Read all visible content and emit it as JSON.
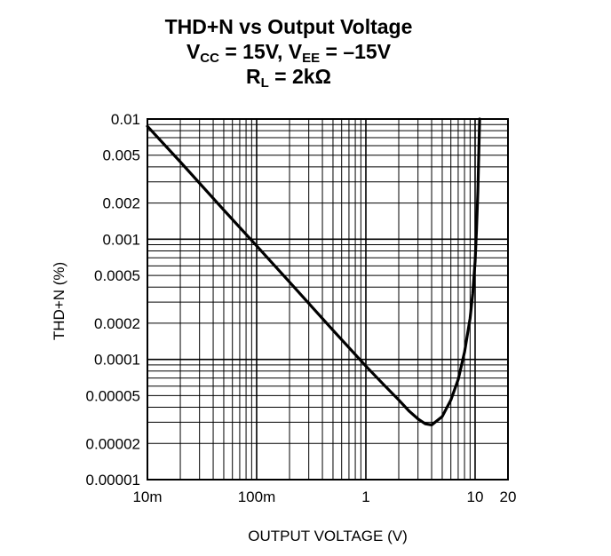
{
  "chart_data": {
    "type": "line",
    "title": {
      "line1": "THD+N vs Output Voltage",
      "line2": {
        "a": "V",
        "a_sub": "CC",
        "b": " = 15V, V",
        "b_sub": "EE",
        "c": " = –15V"
      },
      "line3": {
        "a": "R",
        "a_sub": "L",
        "b": " = 2kΩ"
      }
    },
    "xlabel": "OUTPUT VOLTAGE (V)",
    "ylabel": "THD+N (%)",
    "xscale": "log",
    "yscale": "log",
    "xlim": [
      0.01,
      20
    ],
    "ylim": [
      1e-05,
      0.01
    ],
    "grid": true,
    "x_ticks": [
      {
        "value": 0.01,
        "label": "10m"
      },
      {
        "value": 0.1,
        "label": "100m"
      },
      {
        "value": 1,
        "label": "1"
      },
      {
        "value": 10,
        "label": "10"
      },
      {
        "value": 20,
        "label": "20"
      }
    ],
    "y_ticks": [
      {
        "value": 0.01,
        "label": "0.01"
      },
      {
        "value": 0.005,
        "label": "0.005"
      },
      {
        "value": 0.002,
        "label": "0.002"
      },
      {
        "value": 0.001,
        "label": "0.001"
      },
      {
        "value": 0.0005,
        "label": "0.0005"
      },
      {
        "value": 0.0002,
        "label": "0.0002"
      },
      {
        "value": 0.0001,
        "label": "0.0001"
      },
      {
        "value": 5e-05,
        "label": "0.00005"
      },
      {
        "value": 2e-05,
        "label": "0.00002"
      },
      {
        "value": 1e-05,
        "label": "0.00001"
      }
    ],
    "series": [
      {
        "color": "#000000",
        "x": [
          0.01,
          0.02,
          0.05,
          0.1,
          0.2,
          0.5,
          1,
          1.5,
          2,
          2.5,
          3,
          3.5,
          4,
          5,
          6,
          7,
          8,
          9,
          9.5,
          10,
          10.3,
          10.6,
          10.8,
          11
        ],
        "y": [
          0.0087,
          0.0044,
          0.00175,
          0.00088,
          0.00044,
          0.000175,
          8.8e-05,
          6e-05,
          4.6e-05,
          3.7e-05,
          3.2e-05,
          2.91e-05,
          2.85e-05,
          3.35e-05,
          4.6e-05,
          6.8e-05,
          0.000115,
          0.00022,
          0.00035,
          0.00065,
          0.0012,
          0.0025,
          0.005,
          0.01
        ]
      }
    ]
  }
}
